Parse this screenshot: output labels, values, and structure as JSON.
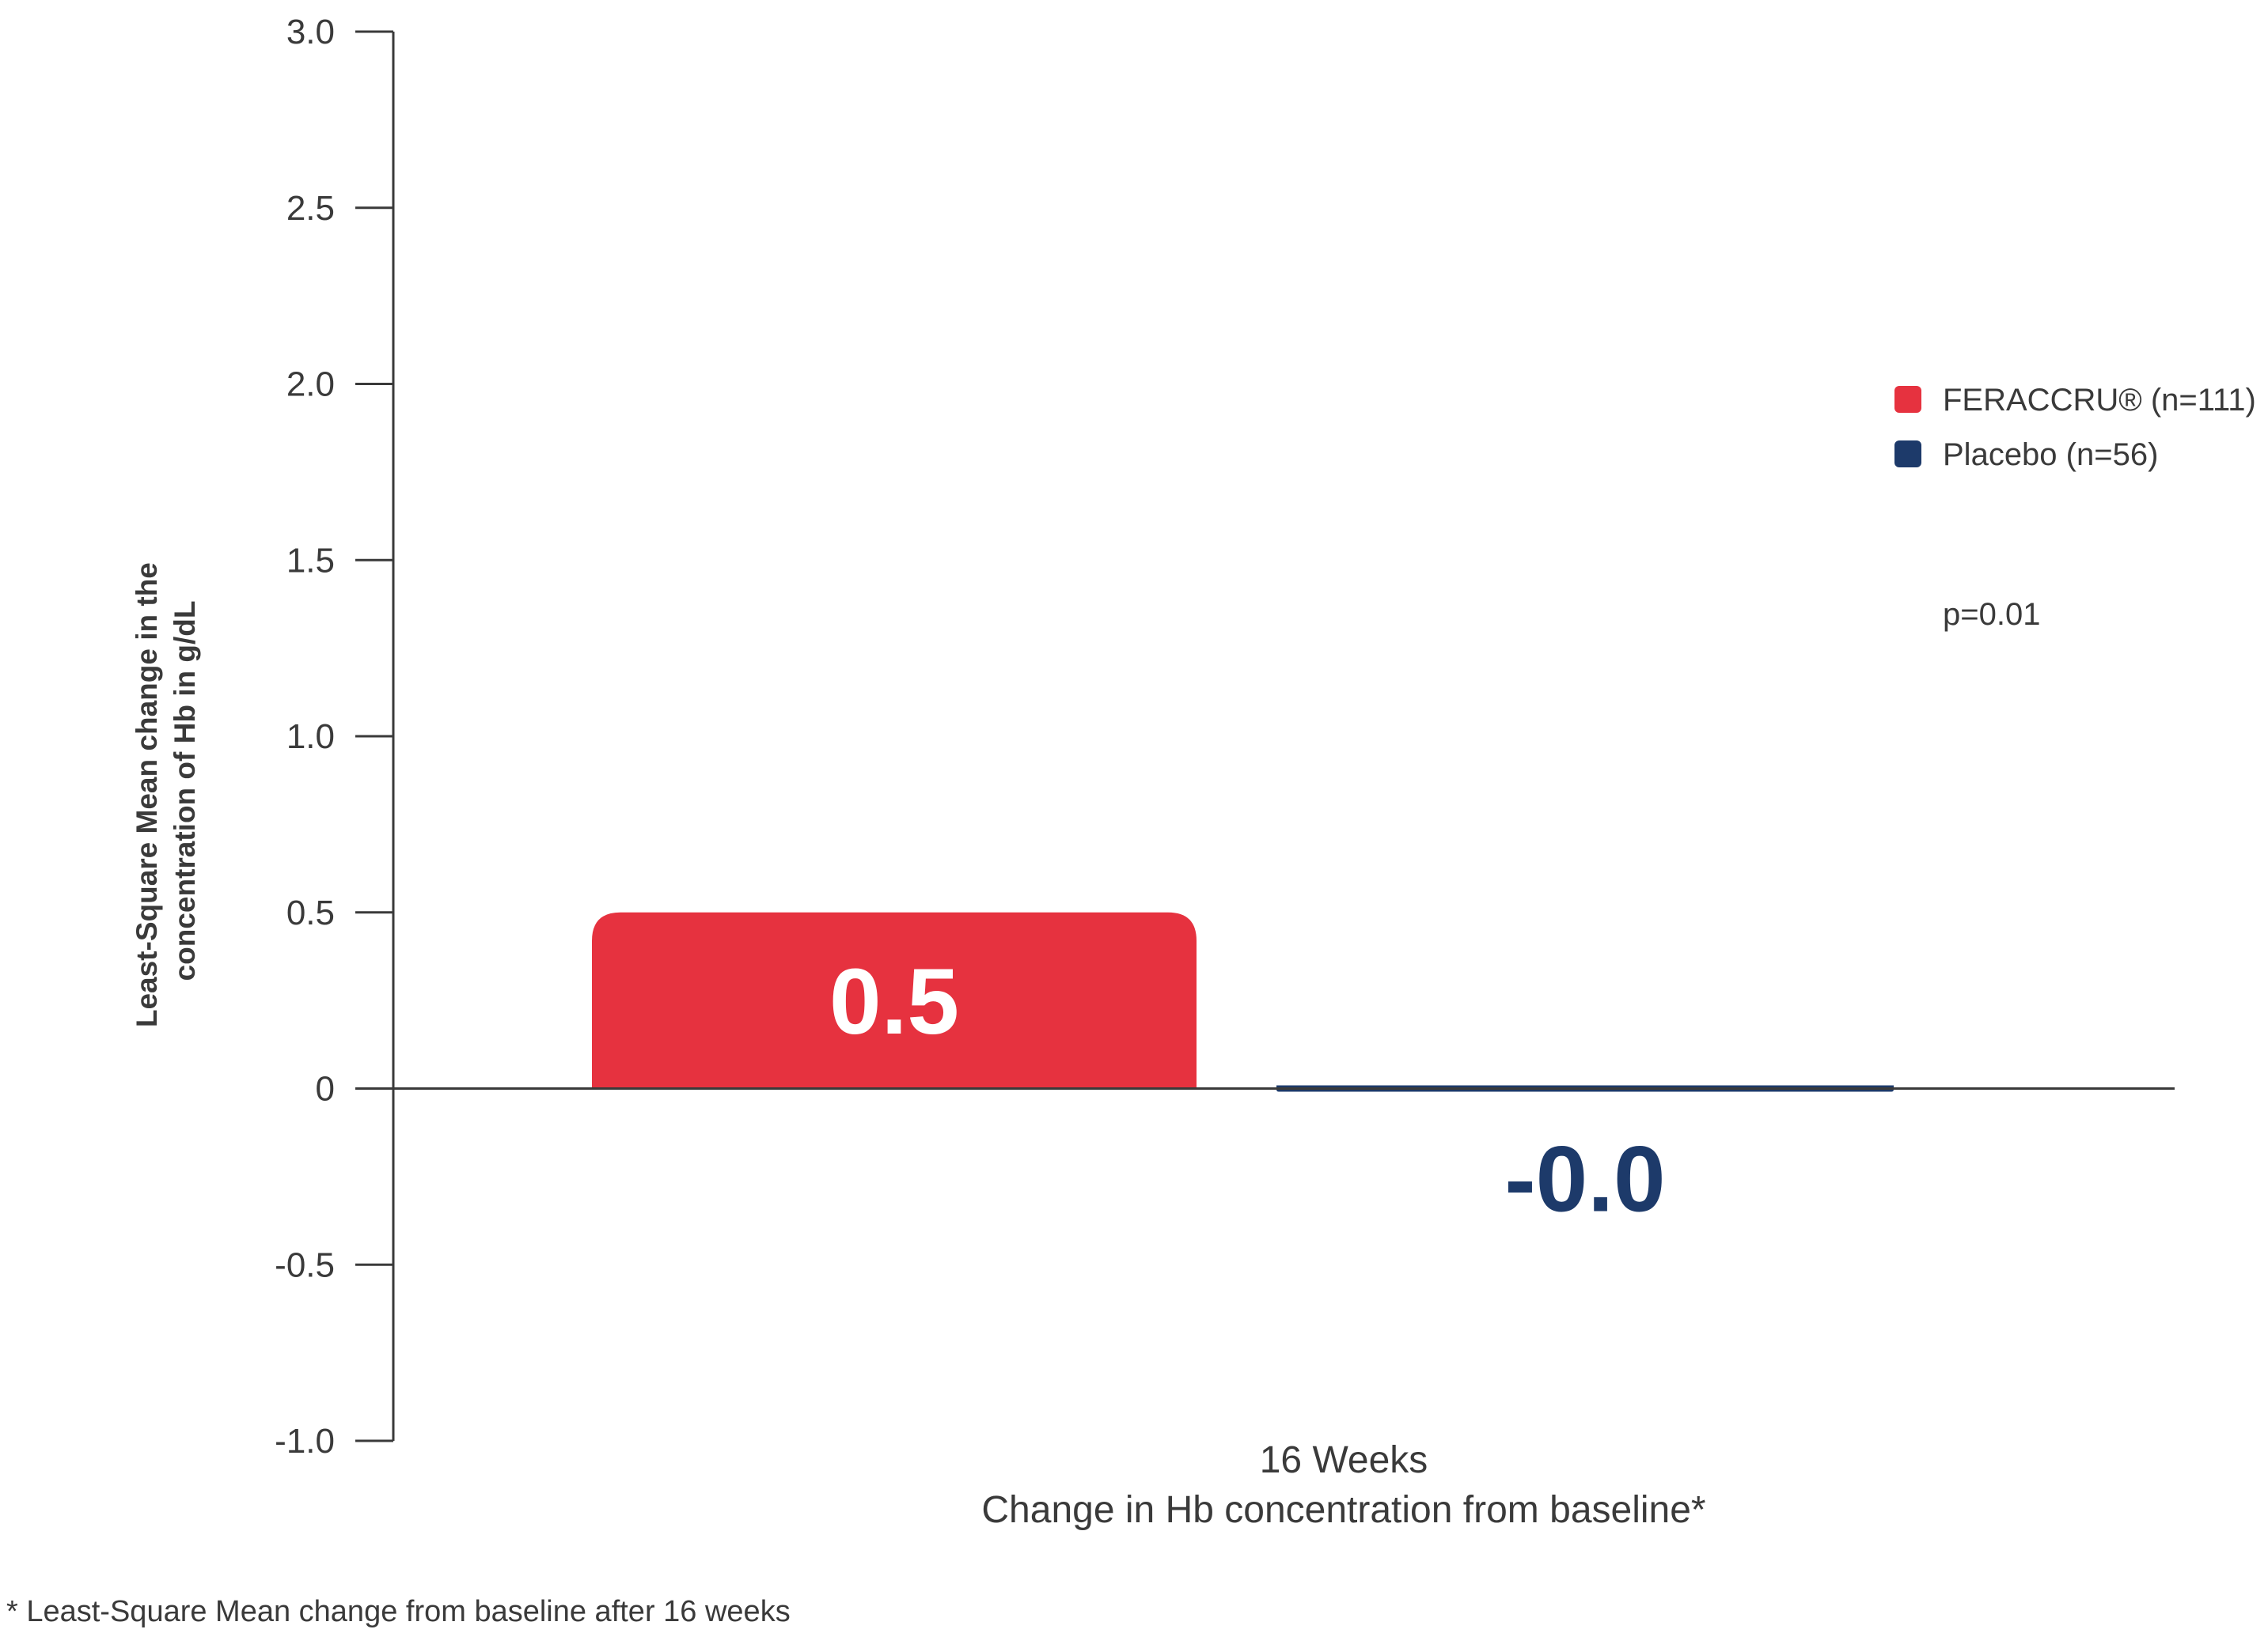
{
  "colors": {
    "feraccru": "#e6323f",
    "placebo": "#1d3a6a",
    "axis": "#3a3a3a"
  },
  "chart_data": {
    "type": "bar",
    "ylabel_lines": [
      "Least-Square Mean change in the",
      "concentration of Hb in g/dL"
    ],
    "ylim": [
      -1.0,
      3.0
    ],
    "yticks": [
      {
        "value": 3.0,
        "label": "3.0"
      },
      {
        "value": 2.5,
        "label": "2.5"
      },
      {
        "value": 2.0,
        "label": "2.0"
      },
      {
        "value": 1.5,
        "label": "1.5"
      },
      {
        "value": 1.0,
        "label": "1.0"
      },
      {
        "value": 0.5,
        "label": "0.5"
      },
      {
        "value": 0,
        "label": "0"
      },
      {
        "value": -0.5,
        "label": "-0.5"
      },
      {
        "value": -1.0,
        "label": "-1.0"
      }
    ],
    "xlabel_lines": [
      "16 Weeks",
      "Change in Hb concentration from baseline*"
    ],
    "series": [
      {
        "name": "FERACCRU® (n=111)",
        "value": 0.5,
        "label": "0.5",
        "color": "#e6323f"
      },
      {
        "name": "Placebo (n=56)",
        "value": -0.01,
        "label": "-0.0",
        "color": "#1d3a6a"
      }
    ],
    "legend_position": "right",
    "grid": false,
    "annotation": "p=0.01"
  },
  "footnote": "* Least-Square Mean change from baseline after 16 weeks"
}
